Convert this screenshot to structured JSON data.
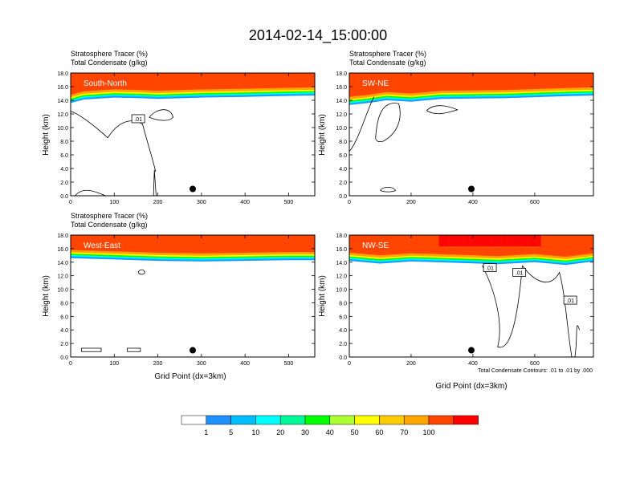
{
  "main_title": "2014-02-14_15:00:00",
  "colorbar": {
    "labels": [
      "1",
      "5",
      "10",
      "20",
      "30",
      "40",
      "50",
      "60",
      "70",
      "100"
    ],
    "colors": [
      "#ffffff",
      "#1e90ff",
      "#00bfff",
      "#00ffff",
      "#00fa9a",
      "#00ff00",
      "#adff2f",
      "#ffff00",
      "#ffcc00",
      "#ffa500",
      "#ff4500",
      "#ff0000"
    ]
  },
  "contour_colors": {
    "line": "#000000"
  },
  "chart_data": [
    {
      "type": "heatmap",
      "subtitle1": "Stratosphere Tracer   (%)",
      "subtitle2": "Total Condensate   (g/kg)",
      "panel_label": "South-North",
      "ylabel": "Height (km)",
      "xlabel": "",
      "xlim": [
        0,
        560
      ],
      "ylim": [
        0,
        18
      ],
      "xticks": [
        "0",
        "100",
        "200",
        "300",
        "400",
        "500"
      ],
      "yticks": [
        "0.0",
        "2.0",
        "4.0",
        "6.0",
        "8.0",
        "10.0",
        "12.0",
        "14.0",
        "16.0",
        "18.0"
      ],
      "tracer_base_km": [
        [
          0,
          14.8
        ],
        [
          30,
          15.3
        ],
        [
          100,
          15.6
        ],
        [
          160,
          15.5
        ],
        [
          200,
          15.4
        ],
        [
          300,
          15.6
        ],
        [
          400,
          15.7
        ],
        [
          470,
          15.8
        ],
        [
          560,
          15.9
        ]
      ],
      "contour_label": ".01",
      "contour_label_pos": [
        155,
        11.3
      ],
      "marker": [
        280,
        1.0
      ],
      "contour_note": ""
    },
    {
      "type": "heatmap",
      "subtitle1": "Stratosphere Tracer   (%)",
      "subtitle2": "Total Condensate   (g/kg)",
      "panel_label": "SW-NE",
      "ylabel": "Height (km)",
      "xlabel": "",
      "xlim": [
        0,
        790
      ],
      "ylim": [
        0,
        18
      ],
      "xticks": [
        "0",
        "200",
        "400",
        "600"
      ],
      "yticks": [
        "0.0",
        "2.0",
        "4.0",
        "6.0",
        "8.0",
        "10.0",
        "12.0",
        "14.0",
        "16.0",
        "18.0"
      ],
      "tracer_base_km": [
        [
          0,
          14.5
        ],
        [
          60,
          14.8
        ],
        [
          120,
          15.2
        ],
        [
          200,
          15.0
        ],
        [
          300,
          15.4
        ],
        [
          500,
          15.5
        ],
        [
          700,
          15.8
        ],
        [
          790,
          15.9
        ]
      ],
      "contour_label": "",
      "contour_label_pos": [
        0,
        0
      ],
      "marker": [
        395,
        1.0
      ],
      "contour_note": ""
    },
    {
      "type": "heatmap",
      "subtitle1": "Stratosphere Tracer   (%)",
      "subtitle2": "Total Condensate   (g/kg)",
      "panel_label": "West-East",
      "ylabel": "Height (km)",
      "xlabel": "Grid Point (dx=3km)",
      "xlim": [
        0,
        560
      ],
      "ylim": [
        0,
        18
      ],
      "xticks": [
        "0",
        "100",
        "200",
        "300",
        "400",
        "500"
      ],
      "yticks": [
        "0.0",
        "2.0",
        "4.0",
        "6.0",
        "8.0",
        "10.0",
        "12.0",
        "14.0",
        "16.0",
        "18.0"
      ],
      "tracer_base_km": [
        [
          0,
          15.8
        ],
        [
          100,
          15.6
        ],
        [
          200,
          15.4
        ],
        [
          300,
          15.3
        ],
        [
          400,
          15.4
        ],
        [
          500,
          15.5
        ],
        [
          560,
          15.5
        ]
      ],
      "contour_label": "",
      "contour_label_pos": [
        0,
        0
      ],
      "marker": [
        280,
        1.0
      ],
      "contour_note": ""
    },
    {
      "type": "heatmap",
      "subtitle1": "",
      "subtitle2": "",
      "panel_label": "NW-SE",
      "ylabel": "Height (km)",
      "xlabel": "Grid Point (dx=3km)",
      "xlim": [
        0,
        790
      ],
      "ylim": [
        0,
        18
      ],
      "xticks": [
        "0",
        "200",
        "400",
        "600"
      ],
      "yticks": [
        "0.0",
        "2.0",
        "4.0",
        "6.0",
        "8.0",
        "10.0",
        "12.0",
        "14.0",
        "16.0",
        "18.0"
      ],
      "tracer_base_km": [
        [
          0,
          15.4
        ],
        [
          100,
          15.0
        ],
        [
          200,
          15.3
        ],
        [
          350,
          15.1
        ],
        [
          480,
          14.9
        ],
        [
          600,
          15.2
        ],
        [
          700,
          14.8
        ],
        [
          790,
          15.3
        ]
      ],
      "contour_label": ".01",
      "contour_label_pos": [
        455,
        13.2
      ],
      "contour_label2": ".01",
      "contour_label2_pos": [
        550,
        12.5
      ],
      "contour_label3": ".01",
      "contour_label3_pos": [
        715,
        8.4
      ],
      "marker": [
        395,
        1.0
      ],
      "contour_note": "Total Condensate Contours: .01 to .01 by .000"
    }
  ]
}
